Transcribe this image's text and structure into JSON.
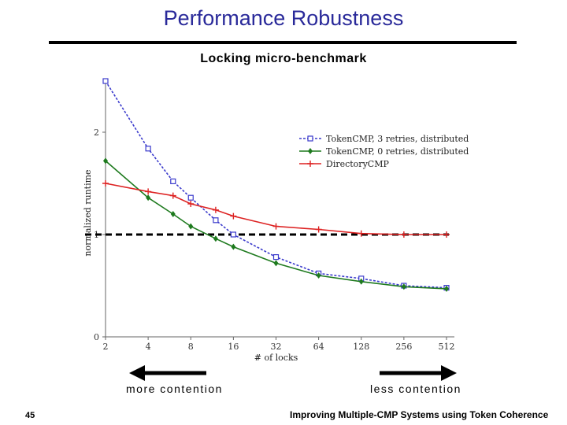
{
  "slide": {
    "title": "Performance Robustness",
    "page_number": "45",
    "footer": "Improving Multiple-CMP Systems using Token Coherence",
    "more_contention": "more contention",
    "less_contention": "less contention"
  },
  "chart_data": {
    "type": "line",
    "title": "Locking micro-benchmark",
    "xlabel": "# of locks",
    "ylabel": "normalized runtime",
    "x_scale": "log2",
    "x": [
      2,
      4,
      6,
      8,
      12,
      16,
      32,
      64,
      128,
      256,
      512
    ],
    "x_ticks": [
      "2",
      "4",
      "8",
      "16",
      "32",
      "64",
      "128",
      "256",
      "512"
    ],
    "y_ticks": [
      "0",
      "1",
      "2"
    ],
    "ylim": [
      0,
      2.5
    ],
    "reference_line": 1,
    "legend_position": "top-right",
    "series": [
      {
        "name": "TokenCMP, 3 retries, distributed",
        "color": "#3b3bcc",
        "marker": "square",
        "dashed": true,
        "values": [
          2.5,
          1.84,
          1.52,
          1.36,
          1.14,
          1.0,
          0.78,
          0.62,
          0.57,
          0.5,
          0.48
        ]
      },
      {
        "name": "TokenCMP, 0 retries, distributed",
        "color": "#1e7a1e",
        "marker": "diamond",
        "dashed": false,
        "values": [
          1.72,
          1.36,
          1.2,
          1.08,
          0.96,
          0.88,
          0.72,
          0.6,
          0.54,
          0.49,
          0.47
        ]
      },
      {
        "name": "DirectoryCMP",
        "color": "#dd2222",
        "marker": "plus",
        "dashed": false,
        "values": [
          1.5,
          1.42,
          1.38,
          1.3,
          1.24,
          1.18,
          1.08,
          1.05,
          1.01,
          1.0,
          1.0
        ]
      }
    ]
  }
}
